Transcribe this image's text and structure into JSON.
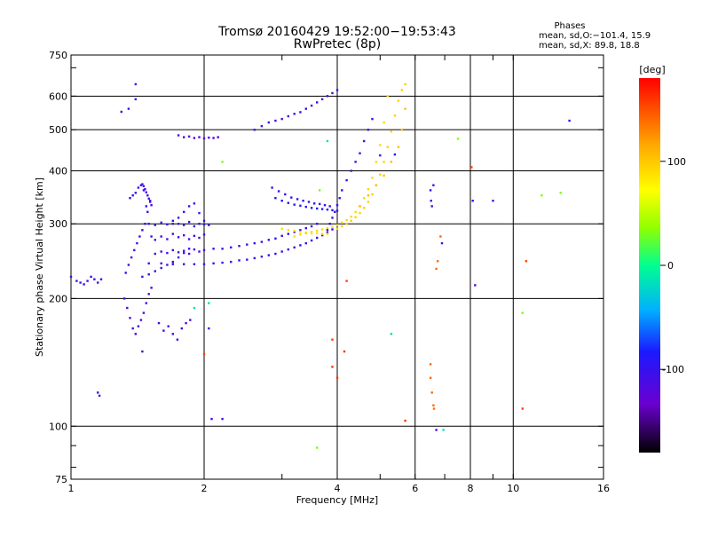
{
  "chart_data": {
    "type": "scatter",
    "title": "Tromsø 20160429 19:52:00−19:53:43",
    "subtitle": "RwPretec (8p)",
    "xlabel": "Frequency [MHz]",
    "ylabel": "Stationary phase Virtual Height [km]",
    "x_scale": "log",
    "y_scale": "log",
    "xlim": [
      1,
      16
    ],
    "ylim": [
      75,
      750
    ],
    "x_ticks": [
      1,
      2,
      4,
      6,
      8,
      10,
      16
    ],
    "y_ticks": [
      75,
      100,
      200,
      300,
      400,
      500,
      600,
      750
    ],
    "grid": true,
    "info": {
      "heading": "Phases",
      "line1": "mean, sd,O:−101.4, 15.9",
      "line2": "mean, sd,X:  89.8, 18.8"
    },
    "colorbar": {
      "label": "[deg]",
      "range": [
        -180,
        180
      ],
      "ticks": [
        -100,
        0,
        100
      ]
    },
    "series": [
      {
        "x": [
          1.0,
          1.03,
          1.05,
          1.07,
          1.09,
          1.11,
          1.13,
          1.15,
          1.17
        ],
        "y": [
          225,
          220,
          218,
          216,
          220,
          225,
          222,
          218,
          222
        ],
        "phase": -105
      },
      {
        "x": [
          1.32,
          1.34,
          1.36,
          1.38,
          1.4,
          1.42,
          1.44,
          1.46,
          1.48,
          1.5,
          1.52
        ],
        "y": [
          200,
          190,
          180,
          170,
          165,
          172,
          178,
          185,
          195,
          205,
          212
        ],
        "phase": -115
      },
      {
        "x": [
          1.33,
          1.35,
          1.37,
          1.39,
          1.41,
          1.43,
          1.45,
          1.47,
          1.49,
          1.51
        ],
        "y": [
          230,
          240,
          250,
          260,
          270,
          280,
          290,
          300,
          320,
          340
        ],
        "phase": -110
      },
      {
        "x": [
          1.36,
          1.38,
          1.4,
          1.42,
          1.44,
          1.46,
          1.48,
          1.5,
          1.52
        ],
        "y": [
          345,
          350,
          355,
          365,
          370,
          360,
          330,
          300,
          280
        ],
        "phase": -105
      },
      {
        "x": [
          1.55,
          1.6,
          1.65,
          1.7,
          1.75,
          1.8,
          1.85,
          1.9,
          1.95,
          2.0
        ],
        "y": [
          298,
          302,
          299,
          305,
          300,
          298,
          303,
          296,
          300,
          299
        ],
        "phase": -100
      },
      {
        "x": [
          1.55,
          1.6,
          1.65,
          1.7,
          1.75,
          1.8,
          1.85,
          1.9,
          1.95,
          2.0
        ],
        "y": [
          275,
          280,
          276,
          284,
          279,
          282,
          276,
          281,
          278,
          283
        ],
        "phase": -108
      },
      {
        "x": [
          1.55,
          1.6,
          1.65,
          1.7,
          1.75,
          1.8,
          1.85,
          1.9,
          1.95,
          2.0
        ],
        "y": [
          255,
          258,
          256,
          260,
          257,
          259,
          255,
          261,
          258,
          260
        ],
        "phase": -112
      },
      {
        "x": [
          1.5,
          1.6,
          1.7,
          1.8,
          1.9,
          2.0,
          2.1,
          2.2,
          2.3,
          2.4,
          2.5,
          2.6,
          2.7,
          2.8,
          2.9,
          3.0,
          3.1,
          3.2,
          3.3,
          3.4,
          3.5,
          3.6,
          3.7,
          3.8,
          3.9
        ],
        "y": [
          242,
          242,
          241,
          241,
          241,
          241,
          242,
          243,
          244,
          246,
          247,
          249,
          251,
          253,
          255,
          258,
          261,
          264,
          267,
          270,
          274,
          278,
          282,
          286,
          291
        ],
        "phase": -105
      },
      {
        "x": [
          2.1,
          2.2,
          2.3,
          2.4,
          2.5,
          2.6,
          2.7,
          2.8,
          2.9,
          3.0,
          3.1,
          3.2,
          3.3,
          3.4,
          3.5,
          3.6
        ],
        "y": [
          262,
          262,
          264,
          266,
          268,
          270,
          272,
          275,
          277,
          281,
          284,
          287,
          290,
          293,
          296,
          300
        ],
        "phase": -100
      },
      {
        "x": [
          1.45,
          1.5,
          1.55,
          1.6,
          1.65,
          1.7,
          1.75,
          1.8,
          1.85
        ],
        "y": [
          225,
          228,
          232,
          236,
          240,
          244,
          250,
          256,
          262
        ],
        "phase": -110
      },
      {
        "x": [
          1.7,
          1.75,
          1.8,
          1.85,
          1.9,
          1.95,
          2.0,
          2.05
        ],
        "y": [
          300,
          310,
          320,
          330,
          335,
          318,
          305,
          298
        ],
        "phase": -105
      },
      {
        "x": [
          1.58,
          1.62,
          1.66,
          1.7,
          1.74,
          1.78,
          1.82,
          1.86
        ],
        "y": [
          175,
          168,
          172,
          165,
          160,
          170,
          175,
          178
        ],
        "phase": -110
      },
      {
        "x": [
          2.85,
          2.95,
          3.05,
          3.15,
          3.25,
          3.35,
          3.45,
          3.55,
          3.65,
          3.75,
          3.85
        ],
        "y": [
          365,
          358,
          352,
          346,
          343,
          340,
          338,
          335,
          334,
          332,
          330
        ],
        "phase": -100
      },
      {
        "x": [
          2.9,
          3.0,
          3.1,
          3.2,
          3.3,
          3.4,
          3.5,
          3.6,
          3.7,
          3.8,
          3.9,
          4.0
        ],
        "y": [
          345,
          340,
          336,
          333,
          331,
          329,
          327,
          326,
          325,
          324,
          323,
          322
        ],
        "phase": -90
      },
      {
        "x": [
          3.0,
          3.1,
          3.2,
          3.3,
          3.4,
          3.5,
          3.6,
          3.7,
          3.8
        ],
        "y": [
          292,
          290,
          289,
          287,
          286,
          285,
          285,
          284,
          284
        ],
        "phase": 88
      },
      {
        "x": [
          3.2,
          3.3,
          3.4,
          3.5,
          3.6,
          3.7,
          3.8,
          3.9,
          4.0,
          4.1,
          4.2,
          4.3,
          4.4,
          4.5,
          4.6,
          4.7,
          4.8,
          4.9,
          5.0,
          5.1,
          5.2
        ],
        "y": [
          280,
          283,
          285,
          287,
          289,
          291,
          293,
          295,
          298,
          302,
          306,
          312,
          320,
          330,
          345,
          362,
          385,
          420,
          460,
          520,
          600
        ],
        "phase": 92
      },
      {
        "x": [
          4.0,
          4.1,
          4.2,
          4.3,
          4.4,
          4.5,
          4.6,
          4.7,
          4.8,
          4.9,
          5.0,
          5.1,
          5.2,
          5.3,
          5.4,
          5.5,
          5.6,
          5.7
        ],
        "y": [
          292,
          296,
          300,
          305,
          311,
          318,
          327,
          338,
          352,
          370,
          392,
          420,
          455,
          495,
          540,
          585,
          620,
          640
        ],
        "phase": 95
      },
      {
        "x": [
          4.5,
          4.7,
          4.9,
          5.1,
          5.3,
          5.5,
          5.6,
          5.7
        ],
        "y": [
          330,
          350,
          370,
          390,
          420,
          455,
          500,
          560
        ],
        "phase": 105
      },
      {
        "x": [
          3.8,
          3.85,
          3.9,
          3.95,
          4.0,
          4.05,
          4.1,
          4.2,
          4.3,
          4.4,
          4.5,
          4.6,
          4.7,
          4.8
        ],
        "y": [
          290,
          300,
          310,
          320,
          332,
          345,
          360,
          380,
          400,
          420,
          440,
          470,
          500,
          530
        ],
        "phase": -95
      },
      {
        "x": [
          2.6,
          2.7,
          2.8,
          2.9,
          3.0,
          3.1,
          3.2,
          3.3,
          3.4,
          3.5,
          3.6,
          3.7,
          3.8,
          3.9,
          4.0
        ],
        "y": [
          500,
          510,
          520,
          525,
          530,
          538,
          545,
          550,
          560,
          570,
          580,
          590,
          600,
          610,
          620
        ],
        "phase": -110
      },
      {
        "x": [
          1.75,
          1.8,
          1.85,
          1.9,
          1.95,
          2.0,
          2.05,
          2.1,
          2.15
        ],
        "y": [
          485,
          480,
          482,
          478,
          480,
          477,
          479,
          478,
          480
        ],
        "phase": -115
      },
      {
        "x": [
          1.45,
          1.46,
          1.47,
          1.48,
          1.49,
          1.5,
          1.51,
          1.52
        ],
        "y": [
          372,
          368,
          362,
          356,
          350,
          344,
          338,
          332
        ],
        "phase": -110
      },
      {
        "x": [
          1.15,
          1.16,
          2.08,
          2.2,
          6.5,
          6.52,
          6.55
        ],
        "y": [
          120,
          118,
          104,
          104,
          360,
          340,
          330
        ],
        "phase": -110
      },
      {
        "x": [
          1.4,
          1.45,
          2.05,
          5.0,
          6.7,
          8.2,
          9.0
        ],
        "y": [
          640,
          150,
          170,
          435,
          98,
          215,
          340
        ],
        "phase": -115
      },
      {
        "x": [
          1.4,
          1.3,
          1.35,
          6.6,
          6.9
        ],
        "y": [
          590,
          551,
          560,
          370,
          270
        ],
        "phase": -100
      },
      {
        "x": [
          6.5,
          6.5,
          6.55,
          6.6,
          6.62,
          6.7,
          6.75,
          6.85
        ],
        "y": [
          140,
          130,
          120,
          112,
          110,
          235,
          245,
          280
        ],
        "phase": 140
      },
      {
        "x": [
          10.5,
          8.05,
          10.7,
          2.0,
          3.9,
          4.2
        ],
        "y": [
          110,
          408,
          245,
          148,
          160,
          220
        ],
        "phase": 155
      },
      {
        "x": [
          7.5,
          10.5,
          11.6,
          12.8,
          3.6,
          5.3,
          2.2,
          3.65
        ],
        "y": [
          476,
          185,
          350,
          355,
          89,
          165,
          420,
          360
        ],
        "phase": 30
      },
      {
        "x": [
          5.7,
          4.0,
          4.15,
          3.9
        ],
        "y": [
          103,
          130,
          150,
          138
        ],
        "phase": 160
      },
      {
        "x": [
          13.4,
          8.1,
          5.4
        ],
        "y": [
          525,
          340,
          437
        ],
        "phase": -85
      },
      {
        "x": [
          1.9,
          2.05,
          3.8,
          5.3,
          6.95
        ],
        "y": [
          190,
          195,
          470,
          165,
          98
        ],
        "phase": -15
      }
    ]
  }
}
